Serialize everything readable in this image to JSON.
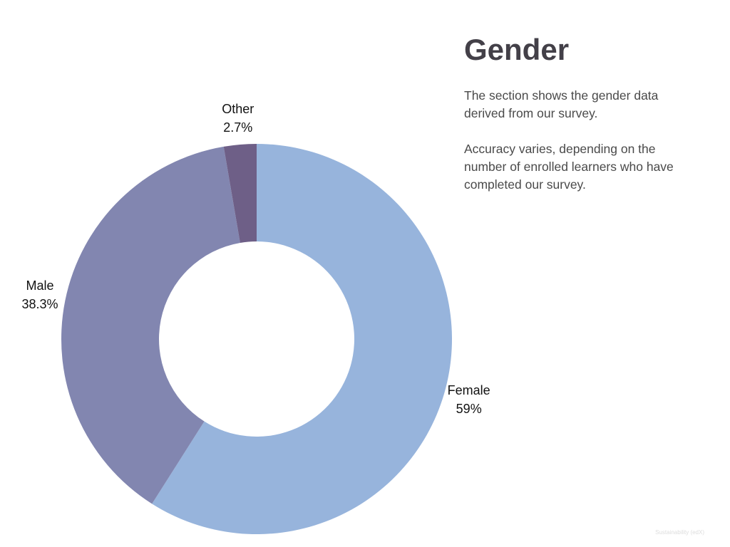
{
  "chart_data": {
    "type": "donut",
    "title": "Gender",
    "paragraphs": [
      "The section shows the gender data derived from our survey.",
      "Accuracy varies, depending on the number of enrolled learners who have completed our survey."
    ],
    "categories": [
      "Female",
      "Male",
      "Other"
    ],
    "values": [
      59,
      38.3,
      2.7
    ],
    "value_labels": [
      "59%",
      "38.3%",
      "2.7%"
    ],
    "colors": [
      "#97b4dc",
      "#8286b0",
      "#6e5f87"
    ],
    "footer": "Sustainability (edX)"
  }
}
